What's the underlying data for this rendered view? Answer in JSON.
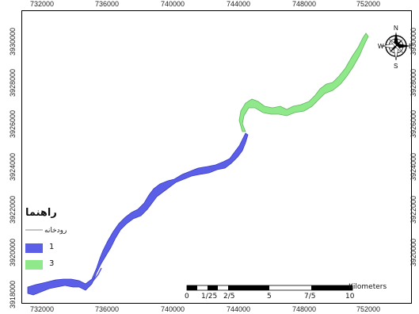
{
  "colors": {
    "zone1": "#5b5ee6",
    "zone3": "#8fe88a",
    "river_line": "#8a8a8a",
    "frame": "#000000"
  },
  "axis": {
    "x_ticks": [
      "732000",
      "736000",
      "740000",
      "744000",
      "748000",
      "752000"
    ],
    "y_ticks": [
      "3930000",
      "3928000",
      "3926000",
      "3924000",
      "3922000",
      "3920000",
      "3918000"
    ],
    "x_bottom_partial": "3918000"
  },
  "compass": {
    "north": "N",
    "east": "E",
    "south": "S",
    "west": "W"
  },
  "legend": {
    "title": "راهنما",
    "river_label": "رودخانه",
    "items": [
      {
        "label": "1",
        "color": "#5b5ee6"
      },
      {
        "label": "3",
        "color": "#8fe88a"
      }
    ]
  },
  "scalebar": {
    "labels": [
      "0",
      "1/25",
      "2/5",
      "5",
      "7/5",
      "10"
    ],
    "unit": "Kilometers"
  }
}
